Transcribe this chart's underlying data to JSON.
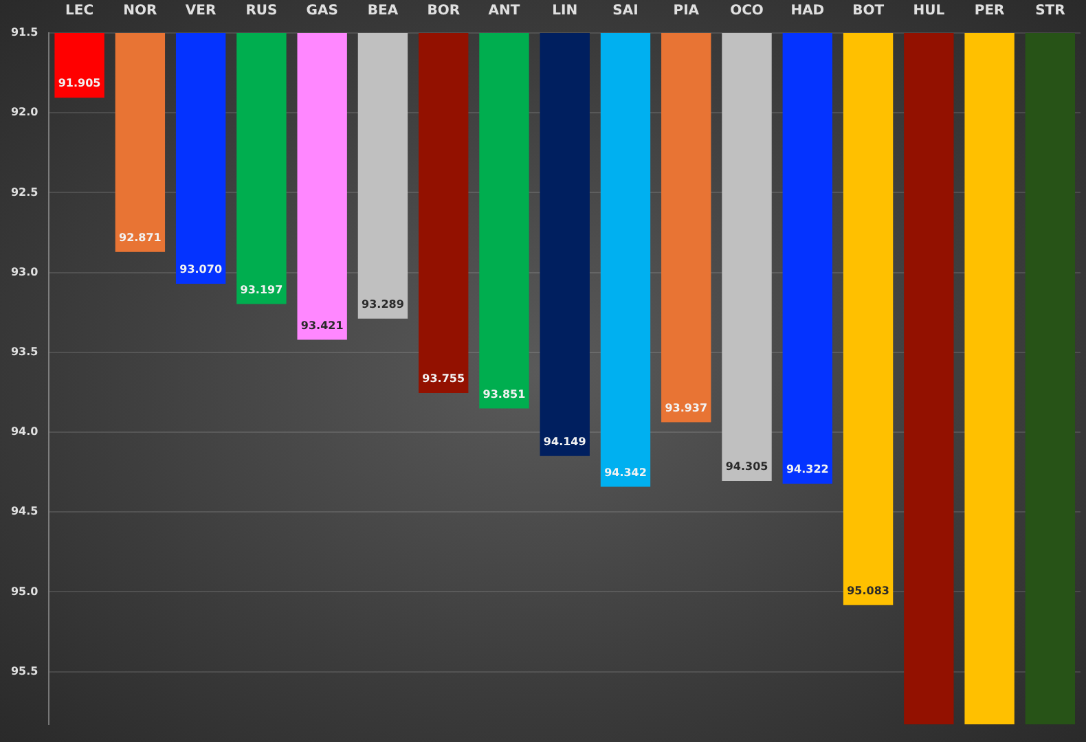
{
  "chart_data": {
    "type": "bar",
    "categories": [
      "LEC",
      "NOR",
      "VER",
      "RUS",
      "GAS",
      "BEA",
      "BOR",
      "ANT",
      "LIN",
      "SAI",
      "PIA",
      "OCO",
      "HAD",
      "BOT",
      "HUL",
      "PER",
      "STR"
    ],
    "values": [
      91.905,
      92.871,
      93.07,
      93.197,
      93.421,
      93.289,
      93.755,
      93.851,
      94.149,
      94.342,
      93.937,
      94.305,
      94.322,
      95.083,
      95.83,
      95.83,
      95.83
    ],
    "colors": [
      "#ff0000",
      "#e87434",
      "#0433ff",
      "#00ae4f",
      "#ff87ff",
      "#c0c0c0",
      "#931100",
      "#00ae4f",
      "#001f5f",
      "#00b0f0",
      "#e87434",
      "#c0c0c0",
      "#0433ff",
      "#ffc000",
      "#931100",
      "#ffc000",
      "#275317"
    ],
    "value_labels": [
      "91.905",
      "92.871",
      "93.070",
      "93.197",
      "93.421",
      "93.289",
      "93.755",
      "93.851",
      "94.149",
      "94.342",
      "93.937",
      "94.305",
      "94.322",
      "95.083",
      null,
      null,
      null
    ],
    "ylim": [
      95.83,
      91.5
    ],
    "yticks": [
      {
        "value": 91.5,
        "label": "91.5"
      },
      {
        "value": 92,
        "label": "92.0"
      },
      {
        "value": 92.5,
        "label": "92.5"
      },
      {
        "value": 93,
        "label": "93.0"
      },
      {
        "value": 93.5,
        "label": "93.5"
      },
      {
        "value": 94,
        "label": "94.0"
      },
      {
        "value": 94.5,
        "label": "94.5"
      },
      {
        "value": 95,
        "label": "95.0"
      },
      {
        "value": 95.5,
        "label": "95.5"
      }
    ],
    "grid": "y",
    "legend": false
  }
}
